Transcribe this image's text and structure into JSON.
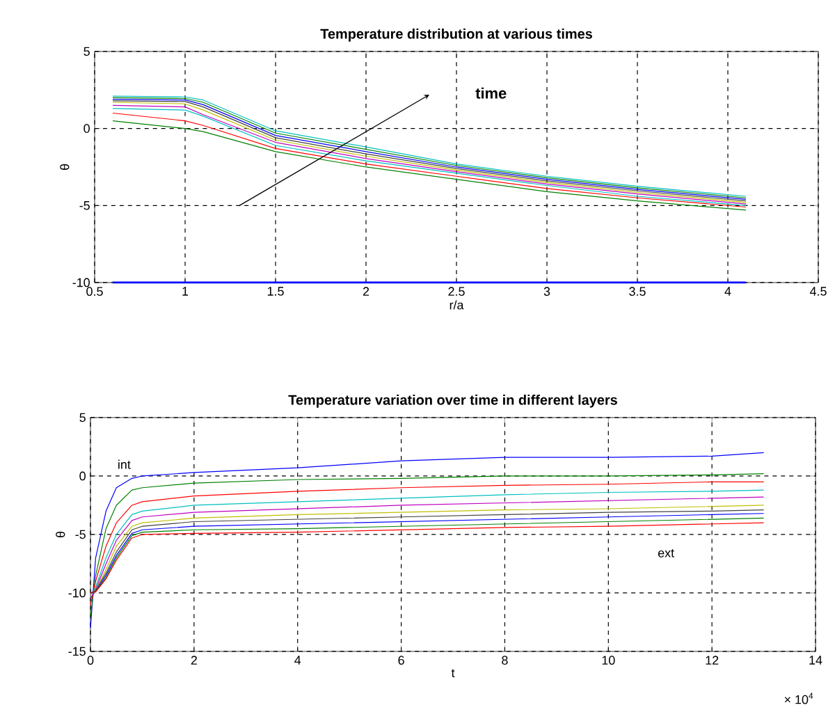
{
  "chart_data": [
    {
      "type": "line",
      "title": "Temperature distribution at various times",
      "xlabel": "r/a",
      "ylabel": "θ",
      "xlim": [
        0.5,
        4.5
      ],
      "ylim": [
        -10,
        5
      ],
      "xticks": [
        0.5,
        1,
        1.5,
        2,
        2.5,
        3,
        3.5,
        4,
        4.5
      ],
      "yticks": [
        -10,
        -5,
        0,
        5
      ],
      "grid": true,
      "annotations": [
        "time"
      ],
      "x": [
        0.6,
        1.0,
        1.1,
        1.5,
        2,
        2.5,
        3,
        3.5,
        4.1
      ],
      "series": [
        {
          "color": "#0000ff",
          "values": [
            -10,
            -10,
            -10,
            -10,
            -10,
            -10,
            -10,
            -10,
            -10
          ]
        },
        {
          "color": "#008000",
          "values": [
            0.5,
            0,
            -0.2,
            -1.5,
            -2.5,
            -3.3,
            -4.1,
            -4.7,
            -5.3
          ]
        },
        {
          "color": "#ff0000",
          "values": [
            1.0,
            0.5,
            0.2,
            -1.3,
            -2.3,
            -3.1,
            -3.9,
            -4.5,
            -5.1
          ]
        },
        {
          "color": "#00bfbf",
          "values": [
            1.3,
            1.2,
            0.8,
            -1.1,
            -2.1,
            -2.9,
            -3.7,
            -4.4,
            -5.0
          ]
        },
        {
          "color": "#bf00bf",
          "values": [
            1.5,
            1.4,
            0.9,
            -0.9,
            -1.95,
            -2.8,
            -3.6,
            -4.25,
            -4.9
          ]
        },
        {
          "color": "#bfbf00",
          "values": [
            1.7,
            1.6,
            1.2,
            -0.75,
            -1.8,
            -2.7,
            -3.5,
            -4.15,
            -4.8
          ]
        },
        {
          "color": "#404040",
          "values": [
            1.8,
            1.75,
            1.4,
            -0.6,
            -1.65,
            -2.6,
            -3.4,
            -4.05,
            -4.7
          ]
        },
        {
          "color": "#0000ff",
          "values": [
            1.9,
            1.85,
            1.55,
            -0.45,
            -1.5,
            -2.5,
            -3.3,
            -3.95,
            -4.6
          ]
        },
        {
          "color": "#008000",
          "values": [
            2.0,
            1.95,
            1.7,
            -0.3,
            -1.35,
            -2.4,
            -3.2,
            -3.85,
            -4.5
          ]
        },
        {
          "color": "#00bfbf",
          "values": [
            2.1,
            2.05,
            1.85,
            -0.15,
            -1.2,
            -2.3,
            -3.1,
            -3.75,
            -4.4
          ]
        }
      ]
    },
    {
      "type": "line",
      "title": "Temperature variation over time in different layers",
      "xlabel": "t",
      "ylabel": "θ",
      "xlim": [
        0,
        14
      ],
      "ylim": [
        -15,
        5
      ],
      "xticks": [
        0,
        2,
        4,
        6,
        8,
        10,
        12,
        14
      ],
      "yticks": [
        -15,
        -10,
        -5,
        0,
        5
      ],
      "grid": true,
      "annotations": [
        "int",
        "ext",
        "× 10$^{4}$"
      ],
      "x": [
        0,
        0.1,
        0.3,
        0.5,
        0.8,
        1,
        2,
        4,
        6,
        8,
        10,
        12,
        13
      ],
      "series": [
        {
          "color": "#0000ff",
          "values": [
            -13,
            -7,
            -3,
            -1,
            -0.2,
            0,
            0.3,
            0.7,
            1.3,
            1.6,
            1.6,
            1.7,
            2.0
          ]
        },
        {
          "color": "#008000",
          "values": [
            -12,
            -8.5,
            -4.5,
            -2.5,
            -1.2,
            -1.0,
            -0.6,
            -0.3,
            -0.2,
            0.0,
            0.0,
            0.1,
            0.2
          ]
        },
        {
          "color": "#ff0000",
          "values": [
            -11,
            -9,
            -6,
            -4,
            -2.5,
            -2.2,
            -1.7,
            -1.3,
            -1.0,
            -0.8,
            -0.7,
            -0.5,
            -0.5
          ]
        },
        {
          "color": "#00bfbf",
          "values": [
            -10.5,
            -9.5,
            -7,
            -5,
            -3.3,
            -3.0,
            -2.5,
            -2.2,
            -1.9,
            -1.6,
            -1.4,
            -1.3,
            -1.2
          ]
        },
        {
          "color": "#bf00bf",
          "values": [
            -10.5,
            -9.7,
            -7.5,
            -5.5,
            -3.8,
            -3.5,
            -3.1,
            -2.8,
            -2.5,
            -2.3,
            -2.1,
            -1.9,
            -1.8
          ]
        },
        {
          "color": "#bfbf00",
          "values": [
            -10,
            -9.8,
            -8,
            -6,
            -4.3,
            -4.0,
            -3.6,
            -3.3,
            -3.1,
            -2.9,
            -2.8,
            -2.6,
            -2.5
          ]
        },
        {
          "color": "#404040",
          "values": [
            -10,
            -9.8,
            -8.3,
            -6.5,
            -4.6,
            -4.3,
            -3.9,
            -3.7,
            -3.5,
            -3.3,
            -3.1,
            -3.0,
            -2.9
          ]
        },
        {
          "color": "#0000ff",
          "values": [
            -10,
            -9.9,
            -8.5,
            -6.8,
            -4.9,
            -4.6,
            -4.3,
            -4.1,
            -3.9,
            -3.7,
            -3.5,
            -3.3,
            -3.2
          ]
        },
        {
          "color": "#008000",
          "values": [
            -10,
            -9.9,
            -8.7,
            -7,
            -5.1,
            -4.8,
            -4.6,
            -4.5,
            -4.3,
            -4.1,
            -3.9,
            -3.7,
            -3.6
          ]
        },
        {
          "color": "#ff0000",
          "values": [
            -10,
            -9.9,
            -8.8,
            -7.2,
            -5.3,
            -5.0,
            -4.9,
            -4.8,
            -4.6,
            -4.4,
            -4.3,
            -4.1,
            -4.0
          ]
        }
      ]
    }
  ]
}
